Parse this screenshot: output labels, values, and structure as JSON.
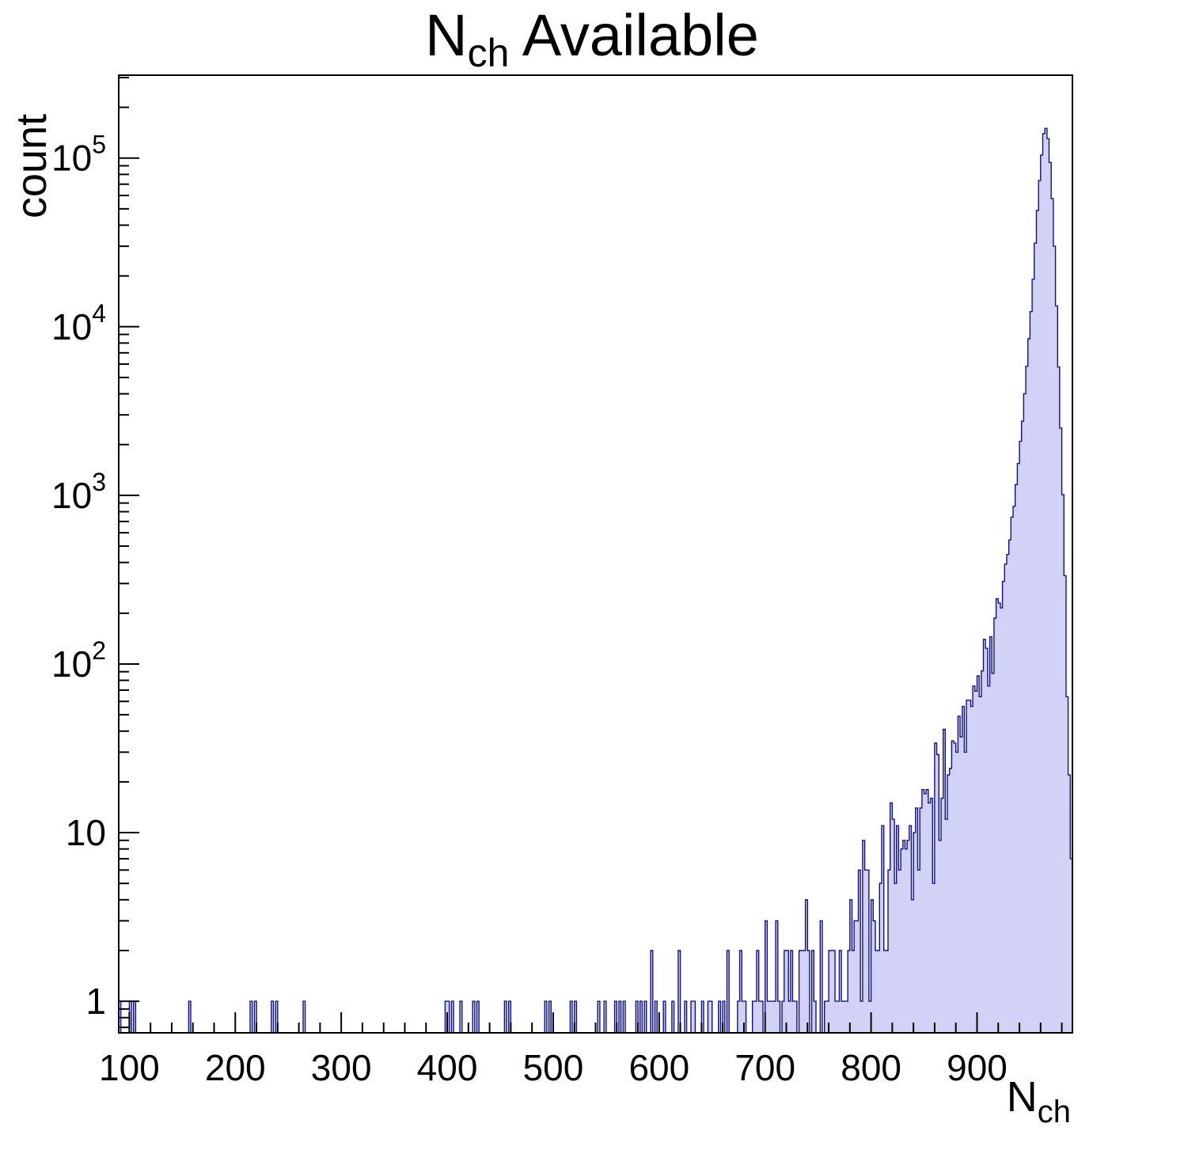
{
  "title": {
    "main": "N",
    "sub": "ch",
    "rest": " Available"
  },
  "y_axis": {
    "title": "count"
  },
  "x_axis": {
    "title_main": "N",
    "title_sub": "ch"
  },
  "chart_data": {
    "type": "bar",
    "subtype": "histogram-log-y",
    "title": "N_ch Available",
    "xlabel": "N_ch",
    "ylabel": "count",
    "x_range": [
      90,
      990
    ],
    "bin_width": 2,
    "y_scale": "log",
    "ylim": [
      0.65,
      310000
    ],
    "x_major_ticks": [
      100,
      200,
      300,
      400,
      500,
      600,
      700,
      800,
      900
    ],
    "x_minor_step": 20,
    "y_major_ticks": [
      {
        "label": "1",
        "value": 1
      },
      {
        "label": "10",
        "value": 10
      },
      {
        "label": "10",
        "exponent": "2",
        "value": 100
      },
      {
        "label": "10",
        "exponent": "3",
        "value": 1000
      },
      {
        "label": "10",
        "exponent": "4",
        "value": 10000
      },
      {
        "label": "10",
        "exponent": "5",
        "value": 100000
      }
    ],
    "peak": {
      "x": 965,
      "count": 150000
    },
    "isolated_bins": [
      [
        91,
        1
      ],
      [
        100,
        1
      ],
      [
        104,
        1
      ],
      [
        156,
        1
      ],
      [
        215,
        1
      ],
      [
        219,
        1
      ],
      [
        235,
        1
      ],
      [
        239,
        1
      ],
      [
        265,
        1
      ],
      [
        398,
        1
      ],
      [
        401,
        1
      ],
      [
        404,
        1
      ],
      [
        412,
        1
      ],
      [
        424,
        1
      ],
      [
        428,
        1
      ],
      [
        455,
        1
      ],
      [
        459,
        1
      ],
      [
        492,
        1
      ],
      [
        497,
        1
      ],
      [
        517,
        1
      ],
      [
        521,
        1
      ],
      [
        543,
        1
      ],
      [
        548,
        1
      ],
      [
        558,
        1
      ],
      [
        562,
        1
      ],
      [
        566,
        1
      ],
      [
        578,
        1
      ],
      [
        582,
        1
      ],
      [
        586,
        1
      ],
      [
        592,
        2
      ],
      [
        596,
        1
      ]
    ],
    "envelope": [
      [
        600,
        0.5
      ],
      [
        650,
        0.6
      ],
      [
        690,
        0.8
      ],
      [
        720,
        1.0
      ],
      [
        750,
        1.4
      ],
      [
        780,
        2.2
      ],
      [
        800,
        3.5
      ],
      [
        820,
        6
      ],
      [
        840,
        9
      ],
      [
        860,
        16
      ],
      [
        880,
        35
      ],
      [
        895,
        60
      ],
      [
        905,
        90
      ],
      [
        915,
        160
      ],
      [
        922,
        250
      ],
      [
        928,
        400
      ],
      [
        933,
        700
      ],
      [
        938,
        1300
      ],
      [
        943,
        2800
      ],
      [
        948,
        7000
      ],
      [
        952,
        15000
      ],
      [
        956,
        40000
      ],
      [
        960,
        90000
      ],
      [
        963,
        140000
      ],
      [
        965,
        150000
      ],
      [
        967,
        130000
      ],
      [
        970,
        80000
      ],
      [
        973,
        30000
      ],
      [
        976,
        9000
      ],
      [
        979,
        2500
      ],
      [
        982,
        600
      ],
      [
        984,
        180
      ],
      [
        986,
        40
      ],
      [
        988,
        10
      ],
      [
        990,
        5
      ]
    ],
    "noise_seed": 42,
    "fill_color": "#d2d2f6",
    "line_color": "#10108c",
    "frame_color": "#000000",
    "legend": "none",
    "grid": "off"
  }
}
